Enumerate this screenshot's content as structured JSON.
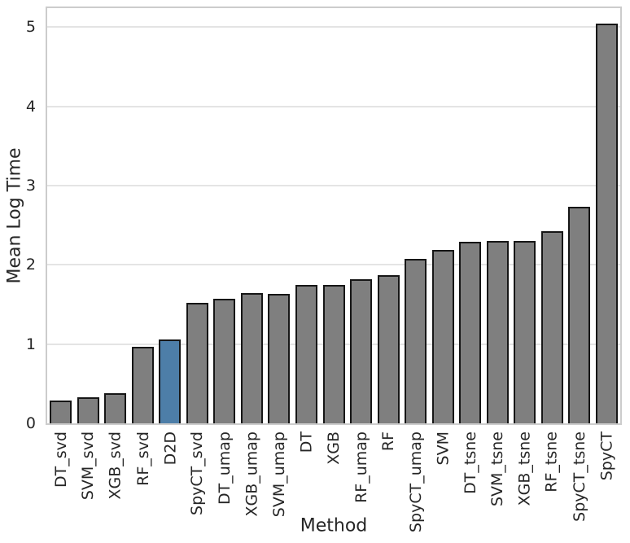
{
  "chart_data": {
    "type": "bar",
    "title": "",
    "xlabel": "Method",
    "ylabel": "Mean Log Time",
    "ylim": [
      0,
      5.24
    ],
    "yticks": [
      0,
      1,
      2,
      3,
      4,
      5
    ],
    "grid": true,
    "legend": false,
    "categories": [
      "DT_svd",
      "SVM_svd",
      "XGB_svd",
      "RF_svd",
      "D2D",
      "SpyCT_svd",
      "DT_umap",
      "XGB_umap",
      "SVM_umap",
      "DT",
      "XGB",
      "RF_umap",
      "RF",
      "SpyCT_umap",
      "SVM",
      "DT_tsne",
      "SVM_tsne",
      "XGB_tsne",
      "RF_tsne",
      "SpyCT_tsne",
      "SpyCT"
    ],
    "values": [
      0.29,
      0.33,
      0.38,
      0.97,
      1.06,
      1.52,
      1.57,
      1.64,
      1.63,
      1.75,
      1.75,
      1.82,
      1.87,
      2.08,
      2.19,
      2.29,
      2.3,
      2.3,
      2.42,
      2.73,
      5.04
    ],
    "highlighted_category": "D2D",
    "colors": {
      "bar": "#7f7f7f",
      "highlight": "#4d7ea8",
      "edge": "#161616",
      "grid": "#e4e4e4",
      "spine": "#cccccc",
      "text": "#262626"
    }
  }
}
